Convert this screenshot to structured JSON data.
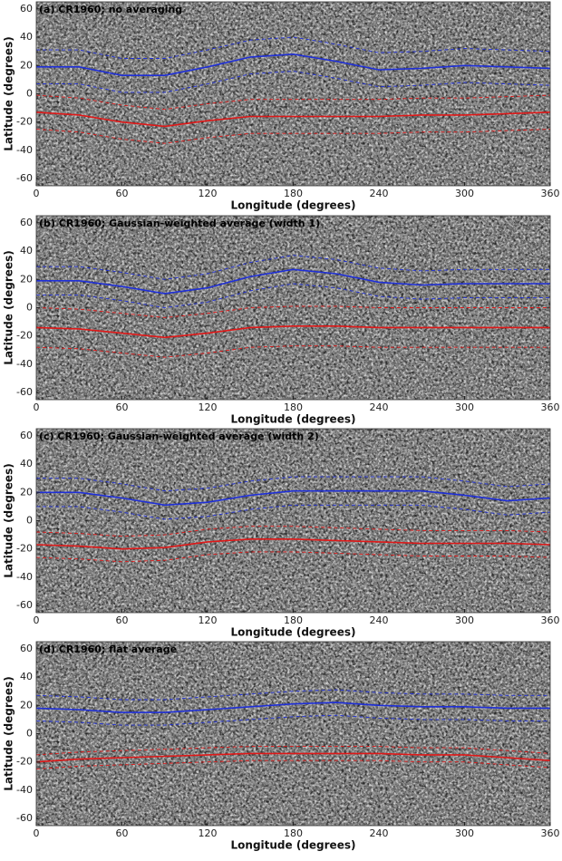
{
  "chart_data": [
    {
      "type": "line",
      "title": "(a) CR1960; no averaging",
      "x_label": "Longitude (degrees)",
      "y_label": "Latitude (degrees)",
      "x": [
        0,
        30,
        60,
        90,
        120,
        150,
        180,
        210,
        240,
        270,
        300,
        330,
        360
      ],
      "xlim": [
        0,
        360
      ],
      "xticks": [
        0,
        60,
        120,
        180,
        240,
        300,
        360
      ],
      "ylim": [
        -65,
        65
      ],
      "yticks": [
        -60,
        -40,
        -20,
        0,
        20,
        40,
        60
      ],
      "series": [
        {
          "color": "#1f2fd8",
          "dash": false,
          "values": [
            19,
            19,
            13,
            13,
            19,
            26,
            28,
            23,
            17,
            18,
            20,
            19,
            18
          ]
        },
        {
          "color": "#1f2fd8",
          "dash": true,
          "values": [
            31,
            31,
            25,
            25,
            31,
            38,
            40,
            35,
            29,
            30,
            32,
            31,
            30
          ]
        },
        {
          "color": "#1f2fd8",
          "dash": true,
          "values": [
            7,
            7,
            1,
            1,
            7,
            14,
            16,
            11,
            5,
            6,
            8,
            7,
            6
          ]
        },
        {
          "color": "#e01818",
          "dash": false,
          "values": [
            -13,
            -15,
            -20,
            -23,
            -19,
            -16,
            -16,
            -16,
            -16,
            -15,
            -15,
            -14,
            -13
          ]
        },
        {
          "color": "#e01818",
          "dash": true,
          "values": [
            -1,
            -3,
            -8,
            -11,
            -7,
            -4,
            -4,
            -4,
            -4,
            -3,
            -3,
            -2,
            -1
          ]
        },
        {
          "color": "#e01818",
          "dash": true,
          "values": [
            -25,
            -27,
            -32,
            -35,
            -31,
            -28,
            -28,
            -28,
            -28,
            -27,
            -27,
            -26,
            -25
          ]
        }
      ]
    },
    {
      "type": "line",
      "title": "(b) CR1960; Gaussian-weighted average (width 1)",
      "x_label": "Longitude (degrees)",
      "y_label": "Latitude (degrees)",
      "x": [
        0,
        30,
        60,
        90,
        120,
        150,
        180,
        210,
        240,
        270,
        300,
        330,
        360
      ],
      "xlim": [
        0,
        360
      ],
      "xticks": [
        0,
        60,
        120,
        180,
        240,
        300,
        360
      ],
      "ylim": [
        -65,
        65
      ],
      "yticks": [
        -60,
        -40,
        -20,
        0,
        20,
        40,
        60
      ],
      "series": [
        {
          "color": "#1f2fd8",
          "dash": false,
          "values": [
            19,
            19,
            15,
            10,
            14,
            22,
            27,
            24,
            18,
            16,
            17,
            17,
            17
          ]
        },
        {
          "color": "#1f2fd8",
          "dash": true,
          "values": [
            29,
            29,
            25,
            20,
            24,
            32,
            37,
            34,
            28,
            26,
            27,
            27,
            27
          ]
        },
        {
          "color": "#1f2fd8",
          "dash": true,
          "values": [
            9,
            9,
            5,
            0,
            4,
            12,
            17,
            14,
            8,
            6,
            7,
            7,
            7
          ]
        },
        {
          "color": "#e01818",
          "dash": false,
          "values": [
            -14,
            -15,
            -18,
            -21,
            -18,
            -14,
            -13,
            -13,
            -14,
            -14,
            -14,
            -14,
            -14
          ]
        },
        {
          "color": "#e01818",
          "dash": true,
          "values": [
            0,
            -1,
            -4,
            -7,
            -4,
            0,
            1,
            1,
            0,
            0,
            0,
            0,
            0
          ]
        },
        {
          "color": "#e01818",
          "dash": true,
          "values": [
            -28,
            -29,
            -32,
            -35,
            -32,
            -28,
            -27,
            -27,
            -28,
            -28,
            -28,
            -28,
            -28
          ]
        }
      ]
    },
    {
      "type": "line",
      "title": "(c) CR1960; Gaussian-weighted average (width 2)",
      "x_label": "Longitude (degrees)",
      "y_label": "Latitude (degrees)",
      "x": [
        0,
        30,
        60,
        90,
        120,
        150,
        180,
        210,
        240,
        270,
        300,
        330,
        360
      ],
      "xlim": [
        0,
        360
      ],
      "xticks": [
        0,
        60,
        120,
        180,
        240,
        300,
        360
      ],
      "ylim": [
        -65,
        65
      ],
      "yticks": [
        -60,
        -40,
        -20,
        0,
        20,
        40,
        60
      ],
      "series": [
        {
          "color": "#1f2fd8",
          "dash": false,
          "values": [
            20,
            20,
            16,
            11,
            13,
            18,
            21,
            21,
            21,
            21,
            18,
            14,
            16
          ]
        },
        {
          "color": "#1f2fd8",
          "dash": true,
          "values": [
            30,
            30,
            26,
            21,
            23,
            28,
            31,
            31,
            31,
            31,
            28,
            24,
            26
          ]
        },
        {
          "color": "#1f2fd8",
          "dash": true,
          "values": [
            10,
            10,
            6,
            1,
            3,
            8,
            11,
            11,
            11,
            11,
            8,
            4,
            6
          ]
        },
        {
          "color": "#e01818",
          "dash": false,
          "values": [
            -17,
            -18,
            -20,
            -19,
            -15,
            -13,
            -13,
            -14,
            -15,
            -16,
            -16,
            -16,
            -17
          ]
        },
        {
          "color": "#e01818",
          "dash": true,
          "values": [
            -8,
            -9,
            -11,
            -10,
            -6,
            -4,
            -4,
            -5,
            -6,
            -7,
            -7,
            -7,
            -8
          ]
        },
        {
          "color": "#e01818",
          "dash": true,
          "values": [
            -26,
            -27,
            -29,
            -28,
            -24,
            -22,
            -22,
            -23,
            -24,
            -25,
            -25,
            -25,
            -26
          ]
        }
      ]
    },
    {
      "type": "line",
      "title": "(d) CR1960; flat average",
      "x_label": "Longitude (degrees)",
      "y_label": "Latitude (degrees)",
      "x": [
        0,
        30,
        60,
        90,
        120,
        150,
        180,
        210,
        240,
        270,
        300,
        330,
        360
      ],
      "xlim": [
        0,
        360
      ],
      "xticks": [
        0,
        60,
        120,
        180,
        240,
        300,
        360
      ],
      "ylim": [
        -65,
        65
      ],
      "yticks": [
        -60,
        -40,
        -20,
        0,
        20,
        40,
        60
      ],
      "series": [
        {
          "color": "#1f2fd8",
          "dash": false,
          "values": [
            18,
            17,
            15,
            15,
            17,
            19,
            21,
            22,
            20,
            19,
            19,
            18,
            18
          ]
        },
        {
          "color": "#1f2fd8",
          "dash": true,
          "values": [
            27,
            26,
            24,
            24,
            26,
            28,
            30,
            31,
            29,
            28,
            28,
            27,
            27
          ]
        },
        {
          "color": "#1f2fd8",
          "dash": true,
          "values": [
            9,
            8,
            6,
            6,
            8,
            10,
            12,
            13,
            11,
            10,
            10,
            9,
            9
          ]
        },
        {
          "color": "#e01818",
          "dash": false,
          "values": [
            -20,
            -18,
            -17,
            -16,
            -15,
            -14,
            -14,
            -14,
            -14,
            -15,
            -15,
            -17,
            -19
          ]
        },
        {
          "color": "#e01818",
          "dash": true,
          "values": [
            -15,
            -13,
            -12,
            -11,
            -10,
            -9,
            -9,
            -9,
            -9,
            -10,
            -10,
            -12,
            -14
          ]
        },
        {
          "color": "#e01818",
          "dash": true,
          "values": [
            -25,
            -23,
            -22,
            -21,
            -20,
            -19,
            -19,
            -19,
            -19,
            -20,
            -20,
            -22,
            -24
          ]
        }
      ]
    }
  ]
}
